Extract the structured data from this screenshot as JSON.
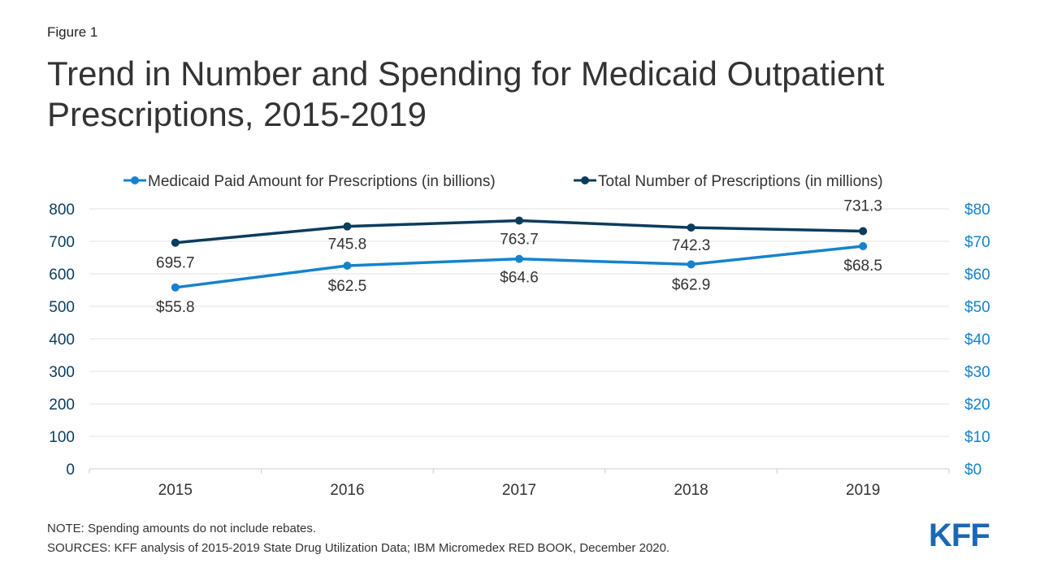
{
  "figure_label": "Figure 1",
  "title_line1": "Trend in Number and Spending for Medicaid Outpatient",
  "title_line2": "Prescriptions, 2015-2019",
  "note": "NOTE: Spending amounts do not include rebates.",
  "sources": "SOURCES: KFF analysis of 2015-2019 State Drug Utilization Data; IBM Micromedex RED BOOK, December 2020.",
  "logo_text": "KFF",
  "colors": {
    "paid_series": "#1583cc",
    "count_series": "#0b3c5d",
    "left_axis": "#0b3c5d",
    "right_axis": "#1583cc",
    "grid": "#e0e0e0",
    "logo": "#1c67b3"
  },
  "chart_data": {
    "type": "line",
    "categories": [
      "2015",
      "2016",
      "2017",
      "2018",
      "2019"
    ],
    "y_left": {
      "range": [
        0,
        800
      ],
      "ticks": [
        "0",
        "100",
        "200",
        "300",
        "400",
        "500",
        "600",
        "700",
        "800"
      ]
    },
    "y_right": {
      "range": [
        0,
        80
      ],
      "ticks": [
        "$0",
        "$10",
        "$20",
        "$30",
        "$40",
        "$50",
        "$60",
        "$70",
        "$80"
      ]
    },
    "grid": true,
    "legend_position": "top",
    "series": [
      {
        "name": "Medicaid Paid Amount for Prescriptions (in billions)",
        "axis": "right",
        "values": [
          55.8,
          62.5,
          64.6,
          62.9,
          68.5
        ],
        "labels": [
          "$55.8",
          "$62.5",
          "$64.6",
          "$62.9",
          "$68.5"
        ]
      },
      {
        "name": "Total Number of Prescriptions (in millions)",
        "axis": "left",
        "values": [
          695.7,
          745.8,
          763.7,
          742.3,
          731.3
        ],
        "labels": [
          "695.7",
          "745.8",
          "763.7",
          "742.3",
          "731.3"
        ]
      }
    ]
  }
}
